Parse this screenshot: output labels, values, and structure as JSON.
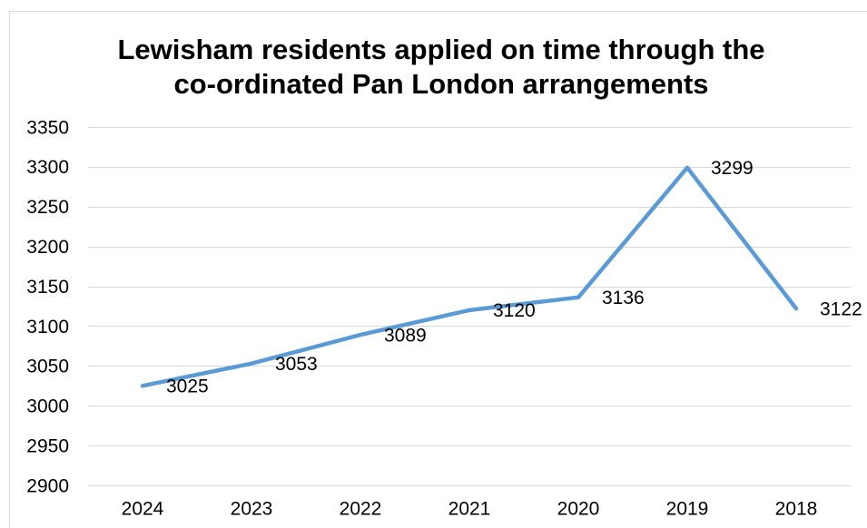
{
  "chart_data": {
    "type": "line",
    "title": "Lewisham residents applied on time through the co-ordinated Pan London arrangements",
    "categories": [
      "2024",
      "2023",
      "2022",
      "2021",
      "2020",
      "2019",
      "2018"
    ],
    "series": [
      {
        "values": [
          3025,
          3053,
          3089,
          3120,
          3136,
          3299,
          3122
        ],
        "color": "#5B9BD5"
      }
    ],
    "ylim": [
      2900,
      3350
    ],
    "yticks": [
      2900,
      2950,
      3000,
      3050,
      3100,
      3150,
      3200,
      3250,
      3300,
      3350
    ],
    "grid": true,
    "legend": false,
    "data_labels": true
  }
}
